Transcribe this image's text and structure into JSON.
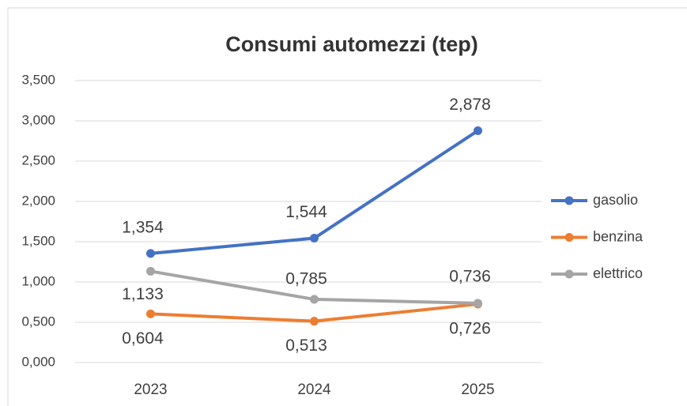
{
  "chart_data": {
    "type": "line",
    "title": "Consumi automezzi (tep)",
    "categories": [
      "2023",
      "2024",
      "2025"
    ],
    "series": [
      {
        "name": "gasolio",
        "color": "#4472c4",
        "values": [
          1.354,
          1.544,
          2.878
        ],
        "value_labels": [
          "1,354",
          "1,544",
          "2,878"
        ]
      },
      {
        "name": "benzina",
        "color": "#ed7d31",
        "values": [
          0.604,
          0.513,
          0.726
        ],
        "value_labels": [
          "0,604",
          "0,513",
          "0,726"
        ]
      },
      {
        "name": "elettrico",
        "color": "#a5a5a5",
        "values": [
          1.133,
          0.785,
          0.736
        ],
        "value_labels": [
          "1,133",
          "0,785",
          "0,736"
        ]
      }
    ],
    "ylim": [
      0,
      3.5
    ],
    "yticks": [
      {
        "value": 0,
        "label": "0,000"
      },
      {
        "value": 0.5,
        "label": "0,500"
      },
      {
        "value": 1,
        "label": "1,000"
      },
      {
        "value": 1.5,
        "label": "1,500"
      },
      {
        "value": 2,
        "label": "2,000"
      },
      {
        "value": 2.5,
        "label": "2,500"
      },
      {
        "value": 3,
        "label": "3,000"
      },
      {
        "value": 3.5,
        "label": "3,500"
      }
    ],
    "grid": true,
    "legend": "right"
  }
}
